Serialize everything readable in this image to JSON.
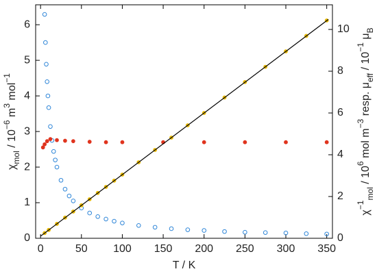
{
  "chart_data": {
    "type": "scatter",
    "xlabel": [
      {
        "text": "T / K"
      }
    ],
    "ylabel": [
      {
        "text": "χ"
      },
      {
        "text": "mol",
        "shift": "sub"
      },
      {
        "text": " / 10"
      },
      {
        "text": "−6",
        "shift": "sup"
      },
      {
        "text": " m"
      },
      {
        "text": "3",
        "shift": "sup"
      },
      {
        "text": " mol"
      },
      {
        "text": "−1",
        "shift": "sup"
      }
    ],
    "y2label": [
      {
        "text": "χ"
      },
      {
        "text": "−1",
        "shift": "sup"
      },
      {
        "text": "mol",
        "shift": "sub"
      },
      {
        "text": " / 10"
      },
      {
        "text": "6",
        "shift": "sup"
      },
      {
        "text": " mol m"
      },
      {
        "text": "−3",
        "shift": "sup"
      },
      {
        "text": "  resp. μ"
      },
      {
        "text": "eff",
        "shift": "sub"
      },
      {
        "text": " / 10"
      },
      {
        "text": "−1",
        "shift": "sup"
      },
      {
        "text": " μ"
      },
      {
        "text": "B",
        "shift": "sub"
      }
    ],
    "xlim": [
      -6,
      357
    ],
    "ylim": [
      0,
      6.56
    ],
    "y2lim": [
      0,
      11.18
    ],
    "xticks": [
      0,
      50,
      100,
      150,
      200,
      250,
      300,
      350
    ],
    "yticks": [
      0,
      1,
      2,
      3,
      4,
      5,
      6
    ],
    "y2ticks": [
      0,
      2,
      4,
      6,
      8,
      10
    ],
    "series": [
      {
        "axis": "y",
        "style": "open",
        "color": "#2f86d8",
        "x": [
          5,
          6,
          7,
          8,
          9,
          10,
          12,
          14,
          16,
          18,
          20,
          25,
          30,
          35,
          40,
          50,
          60,
          70,
          80,
          90,
          100,
          120,
          140,
          160,
          180,
          200,
          225,
          250,
          275,
          300,
          325,
          350
        ],
        "values": [
          6.29,
          5.5,
          4.89,
          4.4,
          4.0,
          3.67,
          3.14,
          2.75,
          2.44,
          2.2,
          2.0,
          1.63,
          1.38,
          1.19,
          1.05,
          0.85,
          0.71,
          0.61,
          0.54,
          0.48,
          0.43,
          0.36,
          0.31,
          0.27,
          0.24,
          0.22,
          0.19,
          0.17,
          0.16,
          0.15,
          0.13,
          0.12
        ]
      },
      {
        "axis": "y2",
        "style": "filled",
        "color": "#e6b800",
        "x": [
          5,
          10,
          20,
          30,
          40,
          50,
          60,
          70,
          80,
          90,
          100,
          120,
          140,
          160,
          180,
          200,
          225,
          250,
          275,
          300,
          325,
          350
        ],
        "values": [
          0.25,
          0.4,
          0.69,
          0.99,
          1.28,
          1.58,
          1.87,
          2.17,
          2.46,
          2.76,
          3.05,
          3.64,
          4.23,
          4.82,
          5.41,
          6.0,
          6.74,
          7.48,
          8.21,
          8.95,
          9.69,
          10.43
        ]
      },
      {
        "axis": "y2",
        "style": "filled",
        "color": "#e0341e",
        "x": [
          3,
          5,
          8,
          12,
          20,
          30,
          40,
          60,
          80,
          100,
          150,
          200,
          250,
          300,
          350
        ],
        "values": [
          4.35,
          4.5,
          4.65,
          4.75,
          4.7,
          4.67,
          4.65,
          4.62,
          4.6,
          4.6,
          4.6,
          4.6,
          4.6,
          4.6,
          4.6
        ]
      },
      {
        "axis": "y2",
        "style": "line",
        "color": "#000000",
        "x": [
          0,
          352
        ],
        "values": [
          0.1,
          10.48
        ]
      }
    ]
  }
}
